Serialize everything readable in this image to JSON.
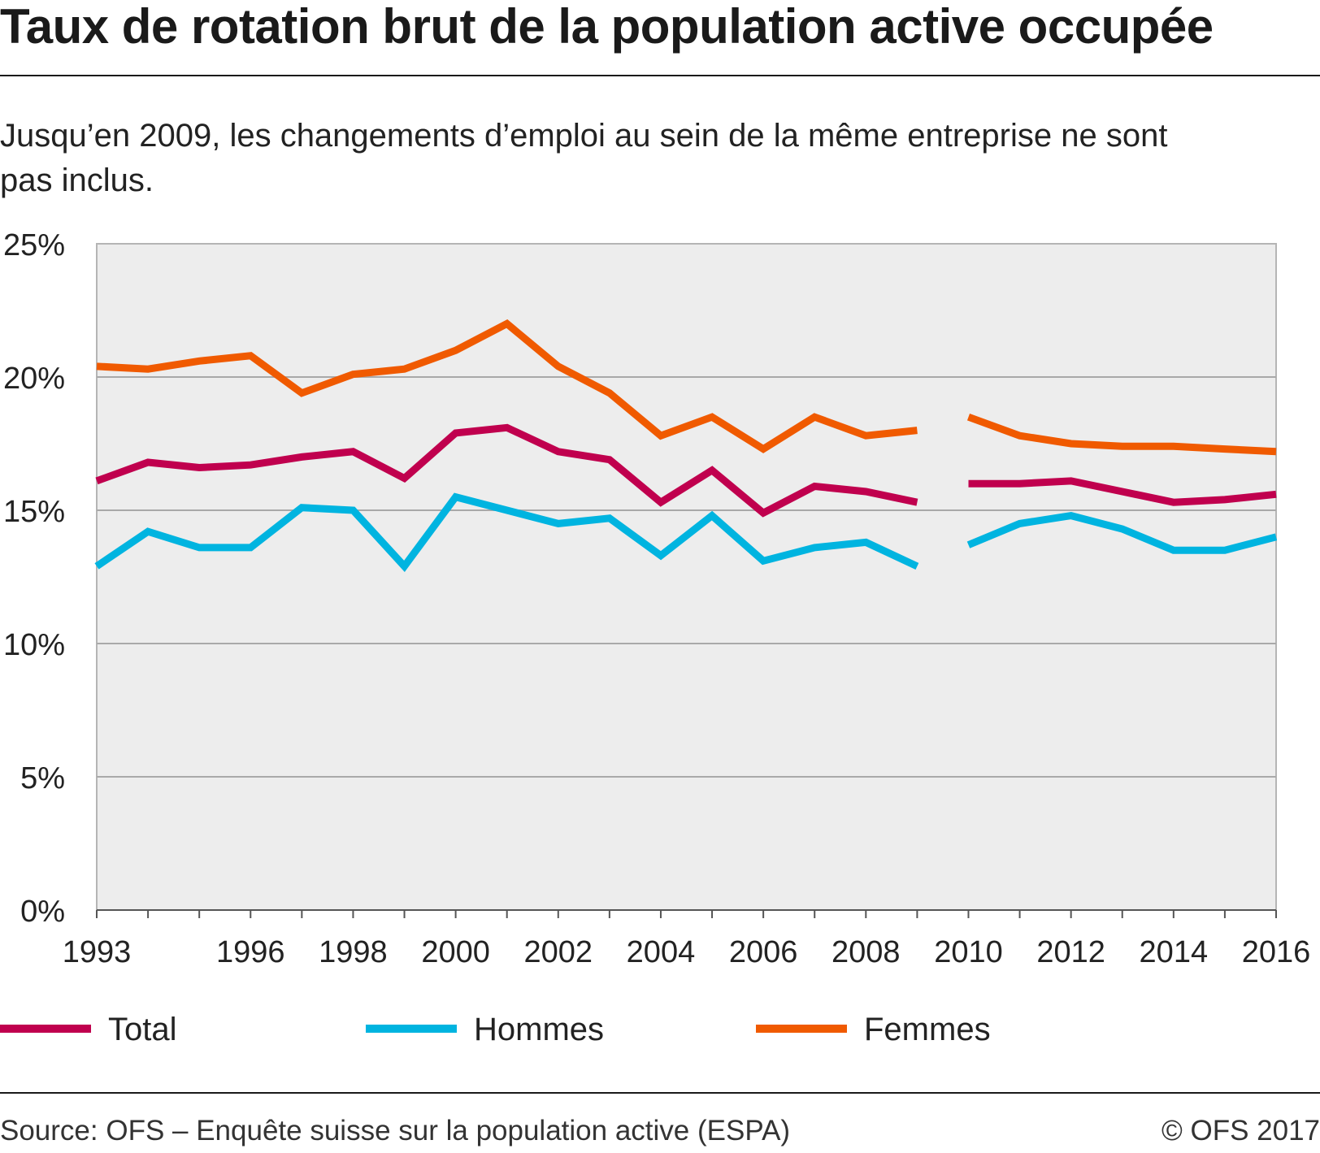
{
  "title": "Taux de rotation brut de la population active occupée",
  "subtitle": "Jusqu’en 2009, les changements d’emploi au sein de la même entreprise ne sont pas inclus.",
  "source": "Source: OFS – Enquête suisse sur la population active (ESPA)",
  "copyright": "© OFS 2017",
  "chart_data": {
    "type": "line",
    "x": [
      1993,
      1994,
      1995,
      1996,
      1997,
      1998,
      1999,
      2000,
      2001,
      2002,
      2003,
      2004,
      2005,
      2006,
      2007,
      2008,
      2009,
      2010,
      2011,
      2012,
      2013,
      2014,
      2015,
      2016
    ],
    "xticks": [
      "1993",
      "",
      "",
      "1996",
      "",
      "1998",
      "",
      "2000",
      "",
      "2002",
      "",
      "2004",
      "",
      "2006",
      "",
      "2008",
      "",
      "2010",
      "",
      "2012",
      "",
      "2014",
      "",
      "2016"
    ],
    "ylim": [
      0,
      25
    ],
    "yticks": [
      0,
      5,
      10,
      15,
      20,
      25
    ],
    "ytick_labels": [
      "0%",
      "5%",
      "10%",
      "15%",
      "20%",
      "25%"
    ],
    "grid": true,
    "legend_placement": "bottom",
    "series": [
      {
        "name": "Total",
        "color": "#c0004e",
        "values": [
          16.1,
          16.8,
          16.6,
          16.7,
          17.0,
          17.2,
          16.2,
          17.9,
          18.1,
          17.2,
          16.9,
          15.3,
          16.5,
          14.9,
          15.9,
          15.7,
          15.3,
          16.0,
          16.0,
          16.1,
          15.7,
          15.3,
          15.4,
          15.6
        ]
      },
      {
        "name": "Hommes",
        "color": "#00b4e0",
        "values": [
          12.9,
          14.2,
          13.6,
          13.6,
          15.1,
          15.0,
          12.9,
          15.5,
          15.0,
          14.5,
          14.7,
          13.3,
          14.8,
          13.1,
          13.6,
          13.8,
          12.9,
          13.7,
          14.5,
          14.8,
          14.3,
          13.5,
          13.5,
          14.0
        ]
      },
      {
        "name": "Femmes",
        "color": "#f05a00",
        "values": [
          20.4,
          20.3,
          20.6,
          20.8,
          19.4,
          20.1,
          20.3,
          21.0,
          22.0,
          20.4,
          19.4,
          17.8,
          18.5,
          17.3,
          18.5,
          17.8,
          18.0,
          18.5,
          17.8,
          17.5,
          17.4,
          17.4,
          17.3,
          17.2
        ]
      }
    ],
    "break_after": 2009
  }
}
